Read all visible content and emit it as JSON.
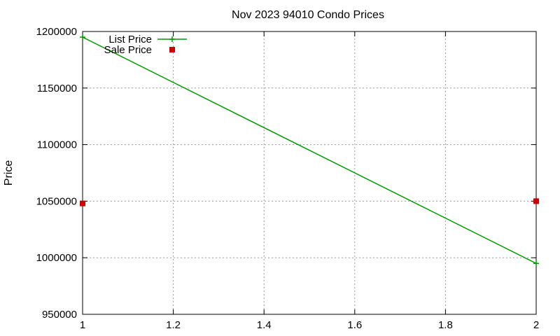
{
  "chart_data": {
    "type": "line",
    "title": "Nov 2023 94010 Condo Prices",
    "xlabel": "",
    "ylabel": "Price",
    "xlim": [
      1,
      2
    ],
    "ylim": [
      950000,
      1200000
    ],
    "x_ticks": [
      "1",
      "1.2",
      "1.4",
      "1.6",
      "1.8",
      "2"
    ],
    "y_ticks": [
      "950000",
      "1000000",
      "1050000",
      "1100000",
      "1150000",
      "1200000"
    ],
    "grid": true,
    "legend_position": "top-left",
    "series": [
      {
        "name": "List Price",
        "style": "linespoints",
        "color": "#009900",
        "marker": "plus",
        "points": [
          {
            "x": 1,
            "y": 1195000
          },
          {
            "x": 2,
            "y": 995000
          }
        ]
      },
      {
        "name": "Sale Price",
        "style": "points",
        "color": "#cc0000",
        "marker": "square",
        "points": [
          {
            "x": 1,
            "y": 1048000
          },
          {
            "x": 2,
            "y": 1050000
          }
        ]
      }
    ]
  }
}
